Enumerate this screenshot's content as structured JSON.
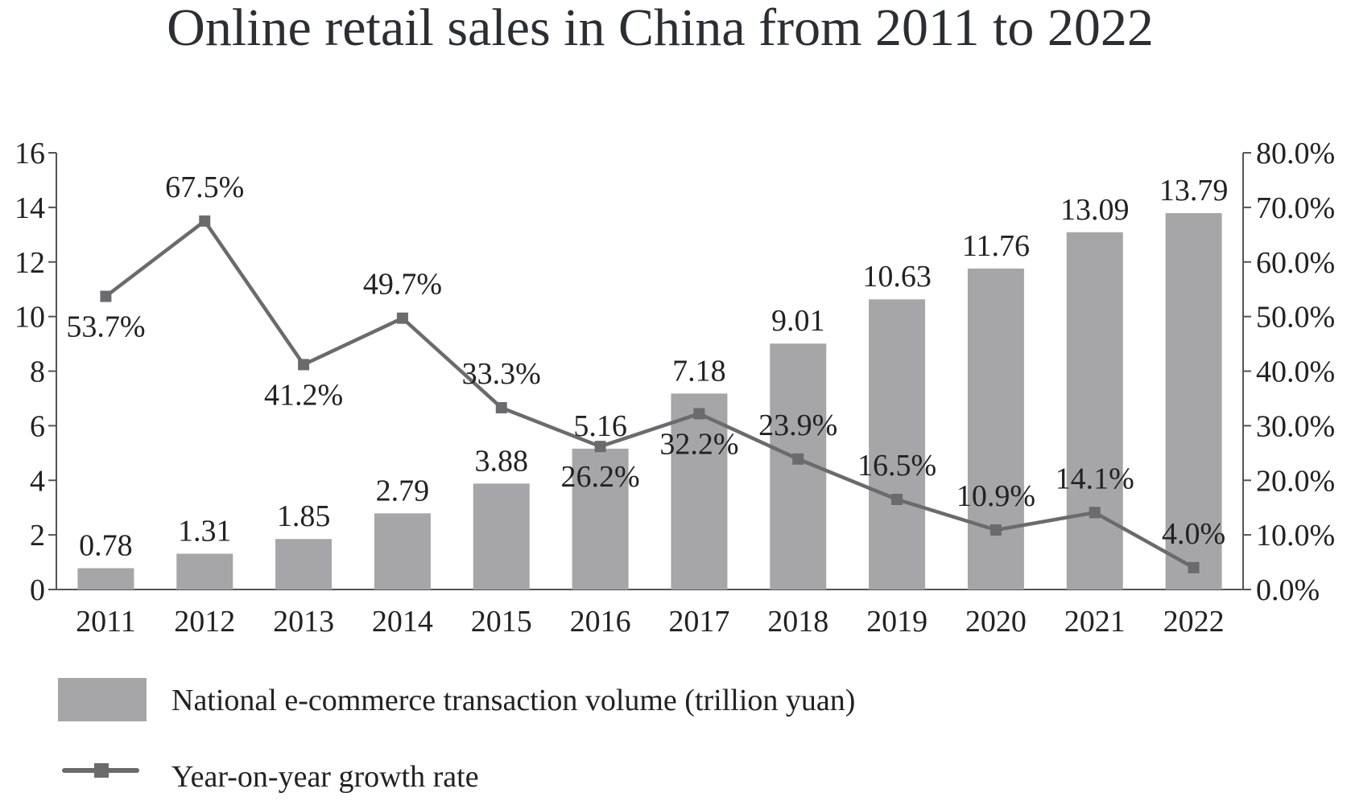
{
  "chart_data": {
    "type": "bar",
    "title": "Online retail sales in China from 2011 to 2022",
    "categories": [
      "2011",
      "2012",
      "2013",
      "2014",
      "2015",
      "2016",
      "2017",
      "2018",
      "2019",
      "2020",
      "2021",
      "2022"
    ],
    "series": [
      {
        "name": "National e-commerce transaction volume (trillion yuan)",
        "type": "bar",
        "axis": "left",
        "values": [
          0.78,
          1.31,
          1.85,
          2.79,
          3.88,
          5.16,
          7.18,
          9.01,
          10.63,
          11.76,
          13.09,
          13.79
        ],
        "labels": [
          "0.78",
          "1.31",
          "1.85",
          "2.79",
          "3.88",
          "5.16",
          "7.18",
          "9.01",
          "10.63",
          "11.76",
          "13.09",
          "13.79"
        ],
        "color": "#a6a6a8"
      },
      {
        "name": "Year-on-year growth rate",
        "type": "line",
        "axis": "right",
        "values": [
          53.7,
          67.5,
          41.2,
          49.7,
          33.3,
          26.2,
          32.2,
          23.9,
          16.5,
          10.9,
          14.1,
          4.0
        ],
        "labels": [
          "53.7%",
          "67.5%",
          "41.2%",
          "49.7%",
          "33.3%",
          "26.2%",
          "32.2%",
          "23.9%",
          "16.5%",
          "10.9%",
          "14.1%",
          "4.0%"
        ],
        "color": "#6b6b6d"
      }
    ],
    "y_left": {
      "ylim": [
        0,
        16
      ],
      "ticks": [
        0,
        2,
        4,
        6,
        8,
        10,
        12,
        14,
        16
      ],
      "tick_labels": [
        "0",
        "2",
        "4",
        "6",
        "8",
        "10",
        "12",
        "14",
        "16"
      ]
    },
    "y_right": {
      "ylim": [
        0,
        80
      ],
      "ticks": [
        0,
        10,
        20,
        30,
        40,
        50,
        60,
        70,
        80
      ],
      "tick_labels": [
        "0.0%",
        "10.0%",
        "20.0%",
        "30.0%",
        "40.0%",
        "50.0%",
        "60.0%",
        "70.0%",
        "80.0%"
      ]
    },
    "xlabel": "",
    "ylabel": "",
    "grid": false,
    "legend_position": "bottom-left"
  }
}
